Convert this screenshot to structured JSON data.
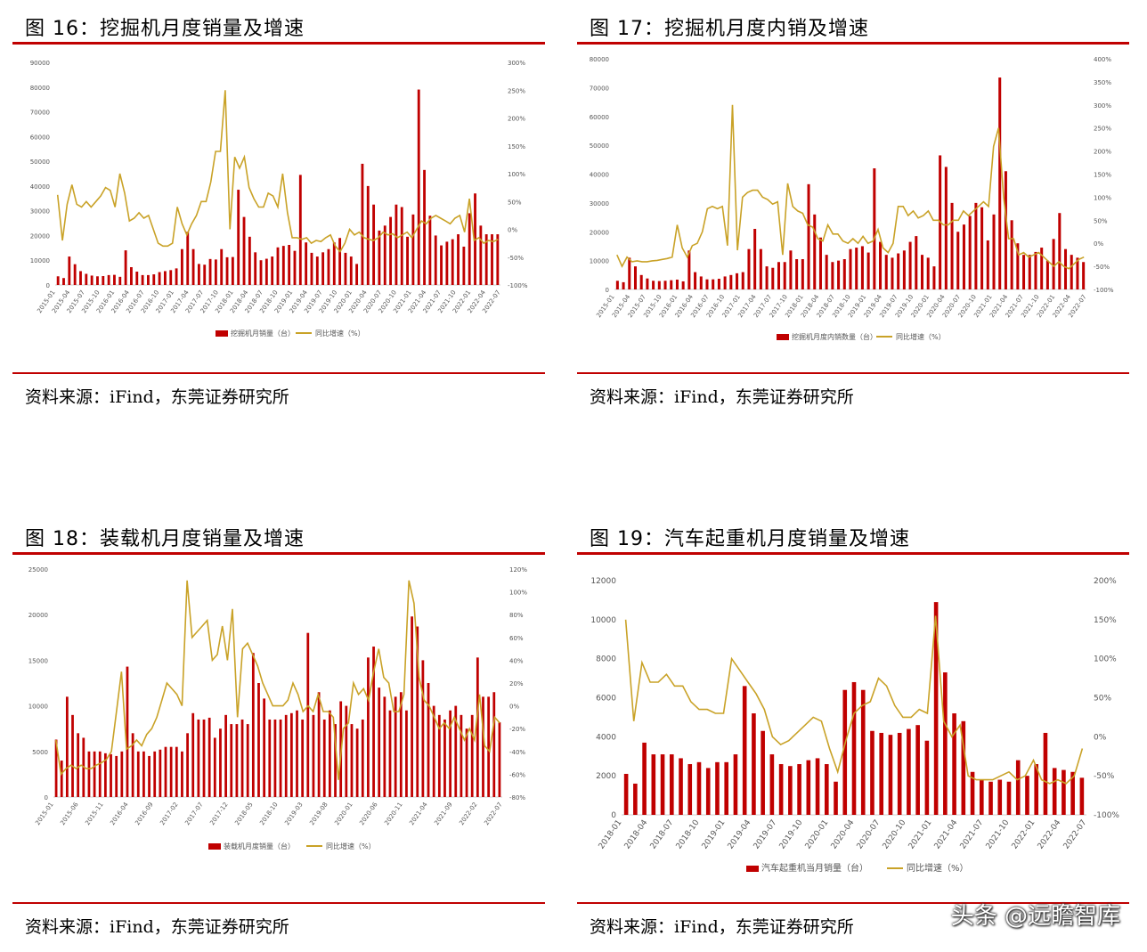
{
  "colors": {
    "bar": "#c00000",
    "line": "#c9a227",
    "rule": "#c00000"
  },
  "watermark": "头条 @远瞻智库",
  "chart_data": [
    {
      "type": "bar+line",
      "fig_title": "图 16：挖掘机月度销量及增速",
      "source": "资料来源：iFind，东莞证券研究所",
      "left_ticks": [
        "0",
        "10000",
        "20000",
        "30000",
        "40000",
        "50000",
        "60000",
        "70000",
        "80000",
        "90000"
      ],
      "right_ticks": [
        "-100%",
        "-50%",
        "0%",
        "50%",
        "100%",
        "150%",
        "200%",
        "250%",
        "300%"
      ],
      "ylim": [
        0,
        90000
      ],
      "y2lim": [
        -100,
        300
      ],
      "x_labels": [
        "2015-01",
        "2015-04",
        "2015-07",
        "2015-10",
        "2016-01",
        "2016-04",
        "2016-07",
        "2016-10",
        "2017-01",
        "2017-04",
        "2017-07",
        "2017-10",
        "2018-01",
        "2018-04",
        "2018-07",
        "2018-10",
        "2019-01",
        "2019-04",
        "2019-07",
        "2019-10",
        "2020-01",
        "2020-04",
        "2020-07",
        "2020-10",
        "2021-01",
        "2021-04",
        "2021-07",
        "2021-10",
        "2022-01",
        "2022-04",
        "2022-07"
      ],
      "legend_bar": "挖掘机月销量（台）",
      "legend_line": "同比增速（%）",
      "bars": [
        3500,
        2800,
        11500,
        8400,
        5600,
        4500,
        3800,
        3500,
        3600,
        4000,
        4100,
        3300,
        14000,
        7200,
        5400,
        4000,
        4000,
        4300,
        5200,
        5600,
        6000,
        6700,
        14500,
        21500,
        14500,
        8500,
        8200,
        10500,
        10300,
        14500,
        11200,
        11300,
        38500,
        27500,
        19500,
        13200,
        10000,
        10600,
        11500,
        15200,
        15800,
        16200,
        13800,
        44500,
        17200,
        13000,
        11500,
        13200,
        14500,
        17200,
        19000,
        13000,
        11500,
        8500,
        49000,
        40000,
        32500,
        22000,
        24000,
        27500,
        32500,
        31500,
        19500,
        28500,
        79000,
        46500,
        28000,
        20000,
        16000,
        17500,
        18500,
        20500,
        15500,
        29000,
        37000,
        24000,
        20500,
        20500,
        20500
      ],
      "line": [
        62,
        -20,
        45,
        80,
        45,
        40,
        50,
        40,
        50,
        60,
        75,
        70,
        40,
        100,
        65,
        15,
        20,
        30,
        20,
        25,
        0,
        -25,
        -30,
        -30,
        -25,
        40,
        10,
        -10,
        10,
        25,
        50,
        50,
        85,
        140,
        140,
        250,
        0,
        130,
        110,
        130,
        75,
        55,
        40,
        40,
        65,
        60,
        40,
        100,
        30,
        -15,
        -15,
        -18,
        -15,
        -25,
        -20,
        -22,
        -15,
        -10,
        -30,
        -40,
        -25,
        0,
        -10,
        -5,
        -15,
        -18,
        -20,
        -15,
        -5,
        -10,
        -8,
        -15,
        -10,
        -5,
        -15,
        0,
        15,
        10,
        20,
        25,
        20,
        15,
        10,
        20,
        25,
        -5,
        55,
        -20,
        -15,
        -25,
        -20,
        -22,
        -18
      ]
    },
    {
      "type": "bar+line",
      "fig_title": "图 17：挖掘机月度内销及增速",
      "source": "资料来源：iFind，东莞证券研究所",
      "left_ticks": [
        "0",
        "10000",
        "20000",
        "30000",
        "40000",
        "50000",
        "60000",
        "70000",
        "80000"
      ],
      "right_ticks": [
        "-100%",
        "-50%",
        "0%",
        "50%",
        "100%",
        "150%",
        "200%",
        "250%",
        "300%",
        "350%",
        "400%"
      ],
      "ylim": [
        0,
        80000
      ],
      "y2lim": [
        -100,
        400
      ],
      "x_labels": [
        "2015-01",
        "2015-04",
        "2015-07",
        "2015-10",
        "2016-01",
        "2016-04",
        "2016-07",
        "2016-10",
        "2017-01",
        "2017-04",
        "2017-07",
        "2017-10",
        "2018-01",
        "2018-04",
        "2018-07",
        "2018-10",
        "2019-01",
        "2019-04",
        "2019-07",
        "2019-10",
        "2020-01",
        "2020-04",
        "2020-07",
        "2020-10",
        "2021-01",
        "2021-04",
        "2021-07",
        "2021-10",
        "2022-01",
        "2022-04",
        "2022-07"
      ],
      "legend_bar": "挖掘机月度内销数量（台）",
      "legend_line": "同比增速（%）",
      "bars": [
        3000,
        2500,
        11000,
        8000,
        5000,
        3800,
        3000,
        2900,
        3000,
        3200,
        3400,
        2800,
        13500,
        6000,
        4500,
        3500,
        3500,
        3700,
        4500,
        5000,
        5600,
        6000,
        14000,
        21000,
        14000,
        8000,
        7500,
        9500,
        9500,
        13500,
        10500,
        10500,
        36500,
        26000,
        18000,
        12000,
        9500,
        10000,
        10500,
        14000,
        14500,
        15000,
        12800,
        42000,
        16500,
        12000,
        11000,
        12500,
        13500,
        16500,
        18500,
        12000,
        11000,
        8000,
        46500,
        42500,
        30000,
        20000,
        22500,
        25500,
        30000,
        28500,
        17000,
        26000,
        73500,
        41000,
        24000,
        16000,
        12000,
        12000,
        13000,
        14500,
        10000,
        17500,
        26500,
        14000,
        12000,
        11000,
        9500
      ],
      "line": [
        -25,
        -50,
        -30,
        -40,
        -38,
        -40,
        -40,
        -38,
        -37,
        -35,
        -33,
        -30,
        40,
        -10,
        -30,
        -5,
        0,
        25,
        75,
        80,
        75,
        80,
        -5,
        300,
        -15,
        100,
        110,
        115,
        115,
        100,
        95,
        85,
        90,
        -25,
        130,
        80,
        70,
        65,
        40,
        35,
        10,
        5,
        40,
        20,
        20,
        5,
        0,
        10,
        0,
        15,
        0,
        5,
        30,
        -10,
        -20,
        0,
        80,
        80,
        60,
        70,
        55,
        60,
        70,
        50,
        50,
        40,
        40,
        50,
        50,
        70,
        60,
        70,
        80,
        90,
        80,
        210,
        250,
        100,
        10,
        10,
        -25,
        -20,
        -30,
        -25,
        -20,
        -30,
        -40,
        -50,
        -40,
        -50,
        -55,
        -45,
        -35,
        -30
      ]
    },
    {
      "type": "bar+line",
      "fig_title": "图 18：装载机月度销量及增速",
      "source": "资料来源：iFind，东莞证券研究所",
      "left_ticks": [
        "0",
        "5000",
        "10000",
        "15000",
        "20000",
        "25000"
      ],
      "right_ticks": [
        "-80%",
        "-60%",
        "-40%",
        "-20%",
        "0%",
        "20%",
        "40%",
        "60%",
        "80%",
        "100%",
        "120%"
      ],
      "ylim": [
        0,
        25000
      ],
      "y2lim": [
        -80,
        120
      ],
      "x_labels": [
        "2015-01",
        "2015-06",
        "2015-11",
        "2016-04",
        "2016-09",
        "2017-02",
        "2017-07",
        "2017-12",
        "2018-05",
        "2018-10",
        "2019-03",
        "2019-08",
        "2020-01",
        "2020-06",
        "2020-11",
        "2021-04",
        "2021-09",
        "2022-02",
        "2022-07"
      ],
      "legend_bar": "装载机月度销量（台）",
      "legend_line": "同比增速（%）",
      "bars": [
        6300,
        4000,
        11000,
        9000,
        7000,
        6500,
        5000,
        5000,
        5000,
        4800,
        4700,
        4500,
        5000,
        14300,
        7000,
        5000,
        5000,
        4500,
        5000,
        5200,
        5500,
        5500,
        5500,
        5000,
        7000,
        9200,
        8500,
        8500,
        8700,
        6500,
        7500,
        9000,
        8000,
        8000,
        8500,
        8000,
        15800,
        12500,
        10800,
        8500,
        8500,
        8500,
        9000,
        9200,
        9500,
        8500,
        18000,
        9000,
        11500,
        8500,
        9500,
        8000,
        10500,
        10000,
        8000,
        7500,
        8500,
        15300,
        16500,
        12000,
        11000,
        9500,
        11000,
        11500,
        9500,
        19800,
        18700,
        15000,
        12500,
        10000,
        9000,
        8500,
        9500,
        10000,
        9000,
        7500,
        9000,
        15300,
        11000,
        11000,
        11500,
        8200
      ],
      "line": [
        -30,
        -60,
        -55,
        -52,
        -55,
        -52,
        -55,
        -55,
        -52,
        -50,
        -47,
        -40,
        -5,
        30,
        -38,
        -35,
        -30,
        -35,
        -25,
        -20,
        -10,
        5,
        20,
        15,
        10,
        0,
        110,
        60,
        65,
        70,
        75,
        40,
        45,
        70,
        40,
        85,
        -10,
        50,
        55,
        45,
        35,
        20,
        10,
        0,
        0,
        0,
        5,
        20,
        10,
        -5,
        0,
        -5,
        10,
        -5,
        -5,
        -10,
        -65,
        -20,
        -15,
        20,
        10,
        15,
        5,
        30,
        50,
        25,
        20,
        -5,
        -5,
        10,
        110,
        90,
        25,
        5,
        0,
        -10,
        -20,
        -15,
        -20,
        -10,
        -20,
        -30,
        -20,
        -30,
        10,
        -35,
        -40,
        -10,
        -15
      ],
      "line_note": ""
    },
    {
      "type": "bar+line",
      "fig_title": "图 19：汽车起重机月度销量及增速",
      "source": "资料来源：iFind，东莞证券研究所",
      "left_ticks": [
        "0",
        "2000",
        "4000",
        "6000",
        "8000",
        "10000",
        "12000"
      ],
      "right_ticks": [
        "-100%",
        "-50%",
        "0%",
        "50%",
        "100%",
        "150%",
        "200%"
      ],
      "ylim": [
        0,
        12000
      ],
      "y2lim": [
        -100,
        200
      ],
      "x_labels": [
        "2018-01",
        "2018-04",
        "2018-07",
        "2018-10",
        "2019-01",
        "2019-04",
        "2019-07",
        "2019-10",
        "2020-01",
        "2020-04",
        "2020-07",
        "2020-10",
        "2021-01",
        "2021-04",
        "2021-07",
        "2021-10",
        "2022-01",
        "2022-04",
        "2022-07"
      ],
      "legend_bar": "汽车起重机当月销量（台）",
      "legend_line": "同比增速（%）",
      "bars": [
        2100,
        1600,
        3700,
        3100,
        3100,
        3100,
        2900,
        2600,
        2700,
        2400,
        2700,
        2700,
        3100,
        6600,
        5200,
        4300,
        3100,
        2600,
        2500,
        2600,
        2800,
        2900,
        2600,
        1700,
        6400,
        6800,
        6400,
        4300,
        4200,
        4100,
        4200,
        4400,
        4600,
        3800,
        10900,
        7300,
        5200,
        4800,
        2200,
        1800,
        1700,
        1800,
        1700,
        2800,
        2000,
        2600,
        4200,
        2400,
        2300,
        2200,
        1900
      ],
      "line": [
        150,
        20,
        95,
        70,
        70,
        80,
        65,
        65,
        45,
        35,
        35,
        30,
        30,
        100,
        85,
        70,
        55,
        35,
        0,
        -10,
        -5,
        5,
        15,
        25,
        20,
        -15,
        -45,
        -5,
        30,
        40,
        45,
        75,
        65,
        40,
        25,
        25,
        35,
        30,
        155,
        20,
        0,
        15,
        -50,
        -55,
        -55,
        -55,
        -50,
        -45,
        -55,
        -50,
        -30,
        -55,
        -60,
        -55,
        -60,
        -50,
        -15
      ]
    }
  ]
}
